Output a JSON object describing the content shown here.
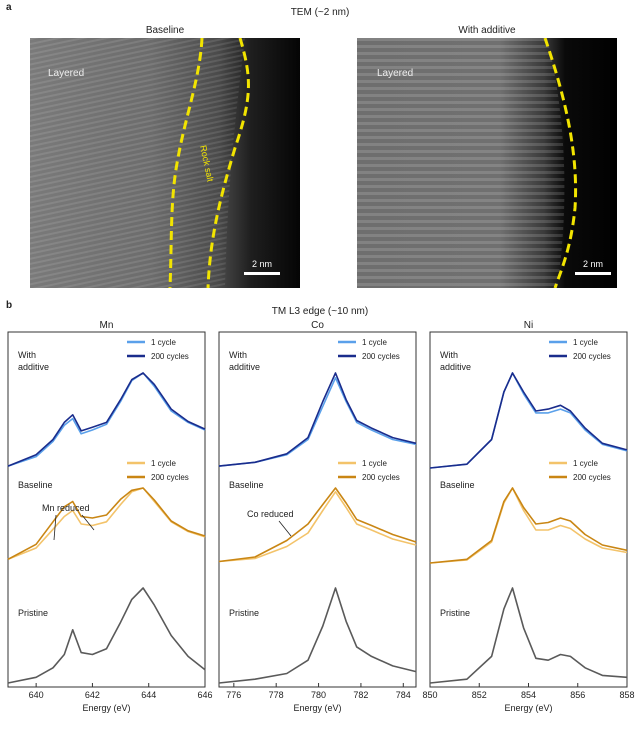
{
  "panel_a": {
    "letter": "a",
    "title": "TEM (~2 nm)",
    "left_image": {
      "label": "Baseline",
      "region_label": "Layered",
      "overlay_label": "Rock salt",
      "scale_bar": "2 nm"
    },
    "right_image": {
      "label": "With additive",
      "region_label": "Layered",
      "scale_bar": "2 nm"
    },
    "colors": {
      "boundary": "#f2e400",
      "image_dark": "#000000"
    }
  },
  "panel_b": {
    "letter": "b",
    "title": "TM L3 edge (~10 nm)",
    "xlabel": "Energy (eV)",
    "row_labels": {
      "with_additive": [
        "With",
        "additive"
      ],
      "baseline": "Baseline",
      "pristine": "Pristine"
    },
    "legend": {
      "cycle1": "1 cycle",
      "cycle200": "200 cycles"
    },
    "colors": {
      "additive_1": "#5aa0ea",
      "additive_200": "#1a2c8c",
      "baseline_1": "#f3c36a",
      "baseline_200": "#c98614",
      "pristine": "#5a5a5a"
    }
  },
  "chart_data": [
    {
      "type": "line",
      "title": "Mn",
      "xlabel": "Energy (eV)",
      "xlim": [
        639,
        646
      ],
      "xticks": [
        "640",
        "642",
        "644",
        "646"
      ],
      "annotation": "Mn reduced",
      "series": [
        {
          "name": "With additive 1 cycle",
          "x": [
            639,
            640,
            640.6,
            641,
            641.3,
            641.6,
            642,
            642.5,
            643,
            643.4,
            643.8,
            644.2,
            644.8,
            645.4,
            646
          ],
          "y": [
            0.02,
            0.12,
            0.28,
            0.45,
            0.52,
            0.36,
            0.4,
            0.46,
            0.7,
            0.92,
            1.0,
            0.86,
            0.6,
            0.48,
            0.4
          ]
        },
        {
          "name": "With additive 200 cycles",
          "x": [
            639,
            640,
            640.6,
            641,
            641.3,
            641.6,
            642,
            642.5,
            643,
            643.4,
            643.8,
            644.2,
            644.8,
            645.4,
            646
          ],
          "y": [
            0.02,
            0.14,
            0.3,
            0.48,
            0.56,
            0.39,
            0.43,
            0.48,
            0.72,
            0.93,
            1.0,
            0.88,
            0.62,
            0.49,
            0.41
          ]
        },
        {
          "name": "Baseline 1 cycle",
          "x": [
            639,
            640,
            640.6,
            641,
            641.3,
            641.6,
            642,
            642.5,
            643,
            643.4,
            643.8,
            644.2,
            644.8,
            645.4,
            646
          ],
          "y": [
            0.05,
            0.2,
            0.45,
            0.62,
            0.7,
            0.52,
            0.5,
            0.55,
            0.78,
            0.95,
            1.0,
            0.82,
            0.55,
            0.42,
            0.35
          ]
        },
        {
          "name": "Baseline 200 cycles",
          "x": [
            639,
            640,
            640.6,
            641,
            641.3,
            641.6,
            642,
            642.5,
            643,
            643.4,
            643.8,
            644.2,
            644.8,
            645.4,
            646
          ],
          "y": [
            0.05,
            0.25,
            0.55,
            0.75,
            0.82,
            0.62,
            0.6,
            0.64,
            0.85,
            0.97,
            1.0,
            0.84,
            0.56,
            0.43,
            0.36
          ]
        },
        {
          "name": "Pristine",
          "x": [
            639,
            640,
            640.6,
            641,
            641.3,
            641.6,
            642,
            642.5,
            643,
            643.4,
            643.8,
            644.2,
            644.8,
            645.4,
            646
          ],
          "y": [
            0.0,
            0.06,
            0.16,
            0.3,
            0.56,
            0.32,
            0.3,
            0.36,
            0.64,
            0.88,
            1.0,
            0.82,
            0.5,
            0.28,
            0.14
          ]
        }
      ]
    },
    {
      "type": "line",
      "title": "Co",
      "xlabel": "Energy (eV)",
      "xlim": [
        775.3,
        784.6
      ],
      "xticks": [
        "776",
        "778",
        "780",
        "782",
        "784"
      ],
      "annotation": "Co reduced",
      "series": [
        {
          "name": "With additive 1 cycle",
          "x": [
            775.3,
            777,
            778.5,
            779.5,
            780.2,
            780.8,
            781.3,
            781.8,
            782.5,
            783.5,
            784.6
          ],
          "y": [
            0.02,
            0.06,
            0.14,
            0.3,
            0.65,
            0.95,
            0.7,
            0.48,
            0.4,
            0.3,
            0.25
          ]
        },
        {
          "name": "With additive 200 cycles",
          "x": [
            775.3,
            777,
            778.5,
            779.5,
            780.2,
            780.8,
            781.3,
            781.8,
            782.5,
            783.5,
            784.6
          ],
          "y": [
            0.02,
            0.06,
            0.15,
            0.32,
            0.7,
            1.0,
            0.72,
            0.5,
            0.42,
            0.32,
            0.26
          ]
        },
        {
          "name": "Baseline 1 cycle",
          "x": [
            775.3,
            777,
            778.5,
            779.5,
            780.2,
            780.8,
            781.3,
            781.8,
            782.5,
            783.5,
            784.6
          ],
          "y": [
            0.02,
            0.06,
            0.22,
            0.4,
            0.7,
            0.95,
            0.74,
            0.52,
            0.44,
            0.32,
            0.24
          ]
        },
        {
          "name": "Baseline 200 cycles",
          "x": [
            775.3,
            777,
            778.5,
            779.5,
            780.2,
            780.8,
            781.3,
            781.8,
            782.5,
            783.5,
            784.6
          ],
          "y": [
            0.02,
            0.08,
            0.3,
            0.52,
            0.78,
            1.0,
            0.8,
            0.58,
            0.5,
            0.38,
            0.28
          ]
        },
        {
          "name": "Pristine",
          "x": [
            775.3,
            777,
            778.5,
            779.5,
            780.2,
            780.8,
            781.3,
            781.8,
            782.5,
            783.5,
            784.6
          ],
          "y": [
            0.0,
            0.04,
            0.1,
            0.24,
            0.6,
            1.0,
            0.65,
            0.38,
            0.28,
            0.18,
            0.12
          ]
        }
      ]
    },
    {
      "type": "line",
      "title": "Ni",
      "xlabel": "Energy (eV)",
      "xlim": [
        850,
        858
      ],
      "xticks": [
        "850",
        "852",
        "854",
        "856",
        "858"
      ],
      "series": [
        {
          "name": "With additive 1 cycle",
          "x": [
            850,
            851.5,
            852.5,
            853,
            853.35,
            853.8,
            854.3,
            854.8,
            855.3,
            855.7,
            856.3,
            857,
            858
          ],
          "y": [
            0.0,
            0.04,
            0.3,
            0.8,
            1.0,
            0.78,
            0.58,
            0.58,
            0.62,
            0.58,
            0.4,
            0.25,
            0.18
          ]
        },
        {
          "name": "With additive 200 cycles",
          "x": [
            850,
            851.5,
            852.5,
            853,
            853.35,
            853.8,
            854.3,
            854.8,
            855.3,
            855.7,
            856.3,
            857,
            858
          ],
          "y": [
            0.0,
            0.04,
            0.3,
            0.8,
            1.0,
            0.8,
            0.6,
            0.62,
            0.66,
            0.6,
            0.42,
            0.26,
            0.19
          ]
        },
        {
          "name": "Baseline 1 cycle",
          "x": [
            850,
            851.5,
            852.5,
            853,
            853.35,
            853.8,
            854.3,
            854.8,
            855.3,
            855.7,
            856.3,
            857,
            858
          ],
          "y": [
            0.0,
            0.04,
            0.28,
            0.8,
            1.0,
            0.7,
            0.44,
            0.44,
            0.5,
            0.46,
            0.32,
            0.2,
            0.14
          ]
        },
        {
          "name": "Baseline 200 cycles",
          "x": [
            850,
            851.5,
            852.5,
            853,
            853.35,
            853.8,
            854.3,
            854.8,
            855.3,
            855.7,
            856.3,
            857,
            858
          ],
          "y": [
            0.0,
            0.05,
            0.3,
            0.82,
            1.0,
            0.74,
            0.52,
            0.54,
            0.6,
            0.56,
            0.38,
            0.24,
            0.17
          ]
        },
        {
          "name": "Pristine",
          "x": [
            850,
            851.5,
            852.5,
            853,
            853.35,
            853.8,
            854.3,
            854.8,
            855.3,
            855.7,
            856.3,
            857,
            858
          ],
          "y": [
            0.0,
            0.04,
            0.28,
            0.78,
            1.0,
            0.58,
            0.26,
            0.24,
            0.3,
            0.28,
            0.16,
            0.08,
            0.06
          ]
        }
      ]
    }
  ]
}
